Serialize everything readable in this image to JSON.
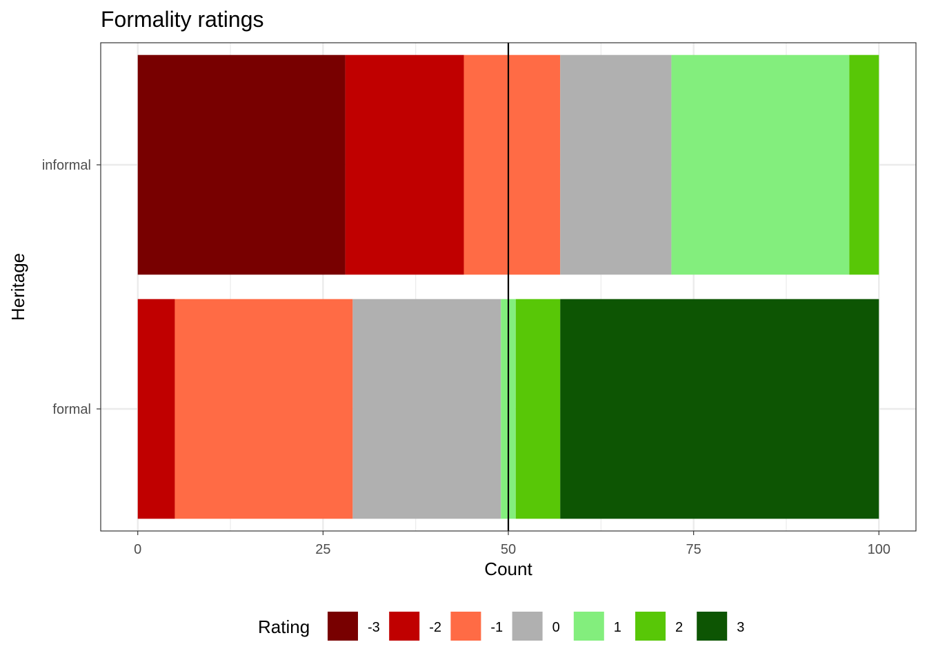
{
  "chart_data": {
    "type": "bar",
    "orientation": "horizontal",
    "stacked": true,
    "title": "Formality ratings",
    "xlabel": "Count",
    "ylabel": "Heritage",
    "xlim": [
      -5,
      105
    ],
    "xticks": [
      0,
      25,
      50,
      75,
      100
    ],
    "categories": [
      "informal",
      "formal"
    ],
    "reference_line": {
      "axis": "x",
      "value": 50,
      "color": "#000000"
    },
    "grid": true,
    "legend": {
      "title": "Rating",
      "position": "bottom"
    },
    "series": [
      {
        "name": "-3",
        "color": "#780000",
        "values": [
          28,
          0
        ]
      },
      {
        "name": "-2",
        "color": "#C00000",
        "values": [
          16,
          5
        ]
      },
      {
        "name": "-1",
        "color": "#FF6B45",
        "values": [
          13,
          24
        ]
      },
      {
        "name": "0",
        "color": "#B0B0B0",
        "values": [
          15,
          20
        ]
      },
      {
        "name": "1",
        "color": "#83EE7D",
        "values": [
          24,
          2
        ]
      },
      {
        "name": "2",
        "color": "#58C707",
        "values": [
          4,
          6
        ]
      },
      {
        "name": "3",
        "color": "#0D5503",
        "values": [
          0,
          43
        ]
      }
    ]
  }
}
